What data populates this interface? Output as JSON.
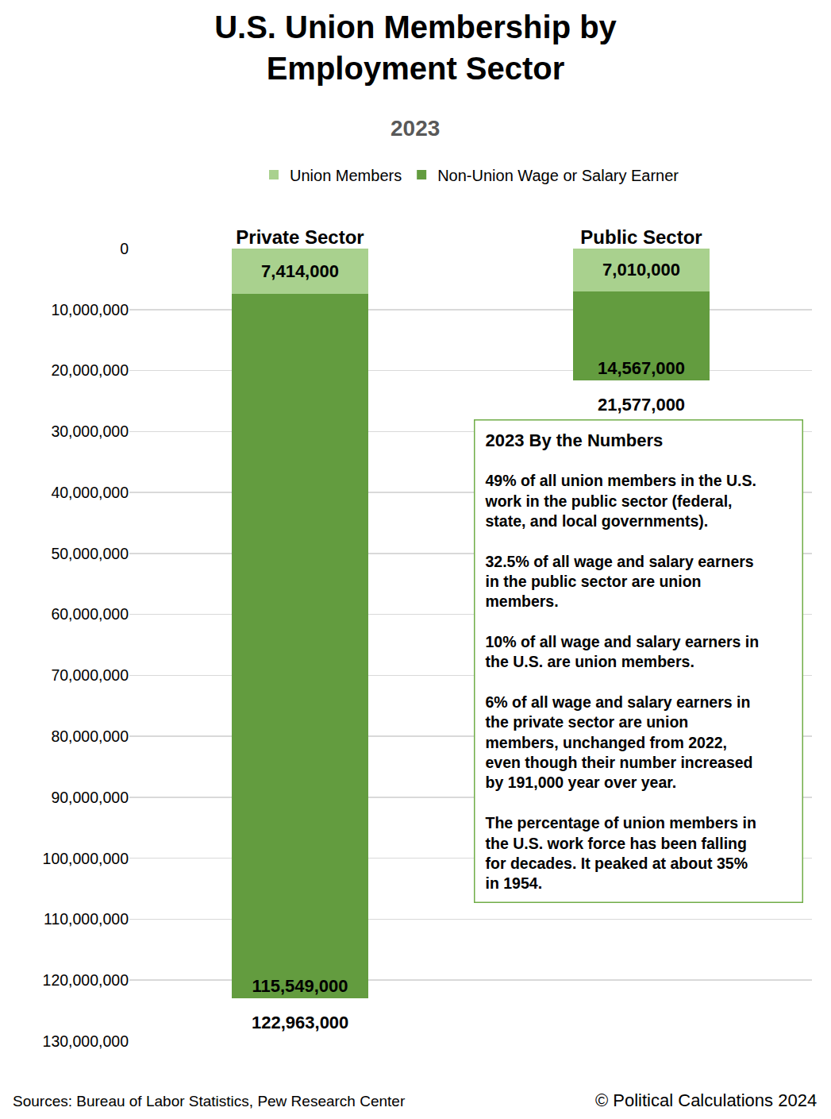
{
  "chart_data": {
    "type": "bar",
    "title": "U.S. Union Membership by Employment Sector",
    "subtitle": "2023",
    "categories": [
      "Private Sector",
      "Public Sector"
    ],
    "series": [
      {
        "name": "Union Members",
        "color": "#a9d18e",
        "values": [
          7414000,
          7010000
        ],
        "value_labels": [
          "7,414,000",
          "7,010,000"
        ]
      },
      {
        "name": "Non-Union Wage or Salary Earner",
        "color": "#639c3f",
        "values": [
          115549000,
          14567000
        ],
        "value_labels": [
          "115,549,000",
          "14,567,000"
        ]
      }
    ],
    "totals": [
      122963000,
      21577000
    ],
    "total_labels": [
      "122,963,000",
      "21,577,000"
    ],
    "stacked": true,
    "data_labels": true,
    "grid": true,
    "legend": "top",
    "ylim": [
      0,
      130000000
    ],
    "yticks": [
      0,
      {
        "value": 10000000,
        "label": "10,000,000"
      },
      {
        "value": 20000000,
        "label": "20,000,000"
      },
      {
        "value": 30000000,
        "label": "30,000,000"
      },
      {
        "value": 40000000,
        "label": "40,000,000"
      },
      {
        "value": 50000000,
        "label": "50,000,000"
      },
      {
        "value": 60000000,
        "label": "60,000,000"
      },
      {
        "value": 70000000,
        "label": "70,000,000"
      },
      {
        "value": 80000000,
        "label": "80,000,000"
      },
      {
        "value": 90000000,
        "label": "90,000,000"
      },
      {
        "value": 100000000,
        "label": "100,000,000"
      },
      {
        "value": 110000000,
        "label": "110,000,000"
      },
      {
        "value": 120000000,
        "label": "120,000,000"
      },
      {
        "value": 130000000,
        "label": "130,000,000"
      }
    ],
    "annotations": [
      {
        "title": "2023 By the Numbers",
        "paragraphs": [
          [
            "49% of all union members in the U.S.",
            "work in the public sector (federal,",
            "state, and local governments)."
          ],
          [
            "32.5% of all wage and salary earners",
            "in the public sector are union",
            "members."
          ],
          [
            "10% of all wage and salary earners in",
            "the U.S. are union members."
          ],
          [
            "6% of all wage and salary earners in",
            "the private sector are union",
            "members, unchanged from 2022,",
            "even though their number increased",
            "by 191,000 year over year."
          ],
          [
            "The percentage of union members in",
            "the U.S. work force has been falling",
            "for decades. It peaked at about 35%",
            "in 1954."
          ]
        ]
      }
    ],
    "sources": "Sources: Bureau of Labor Statistics, Pew Research Center",
    "credit": "© Political Calculations 2024"
  }
}
